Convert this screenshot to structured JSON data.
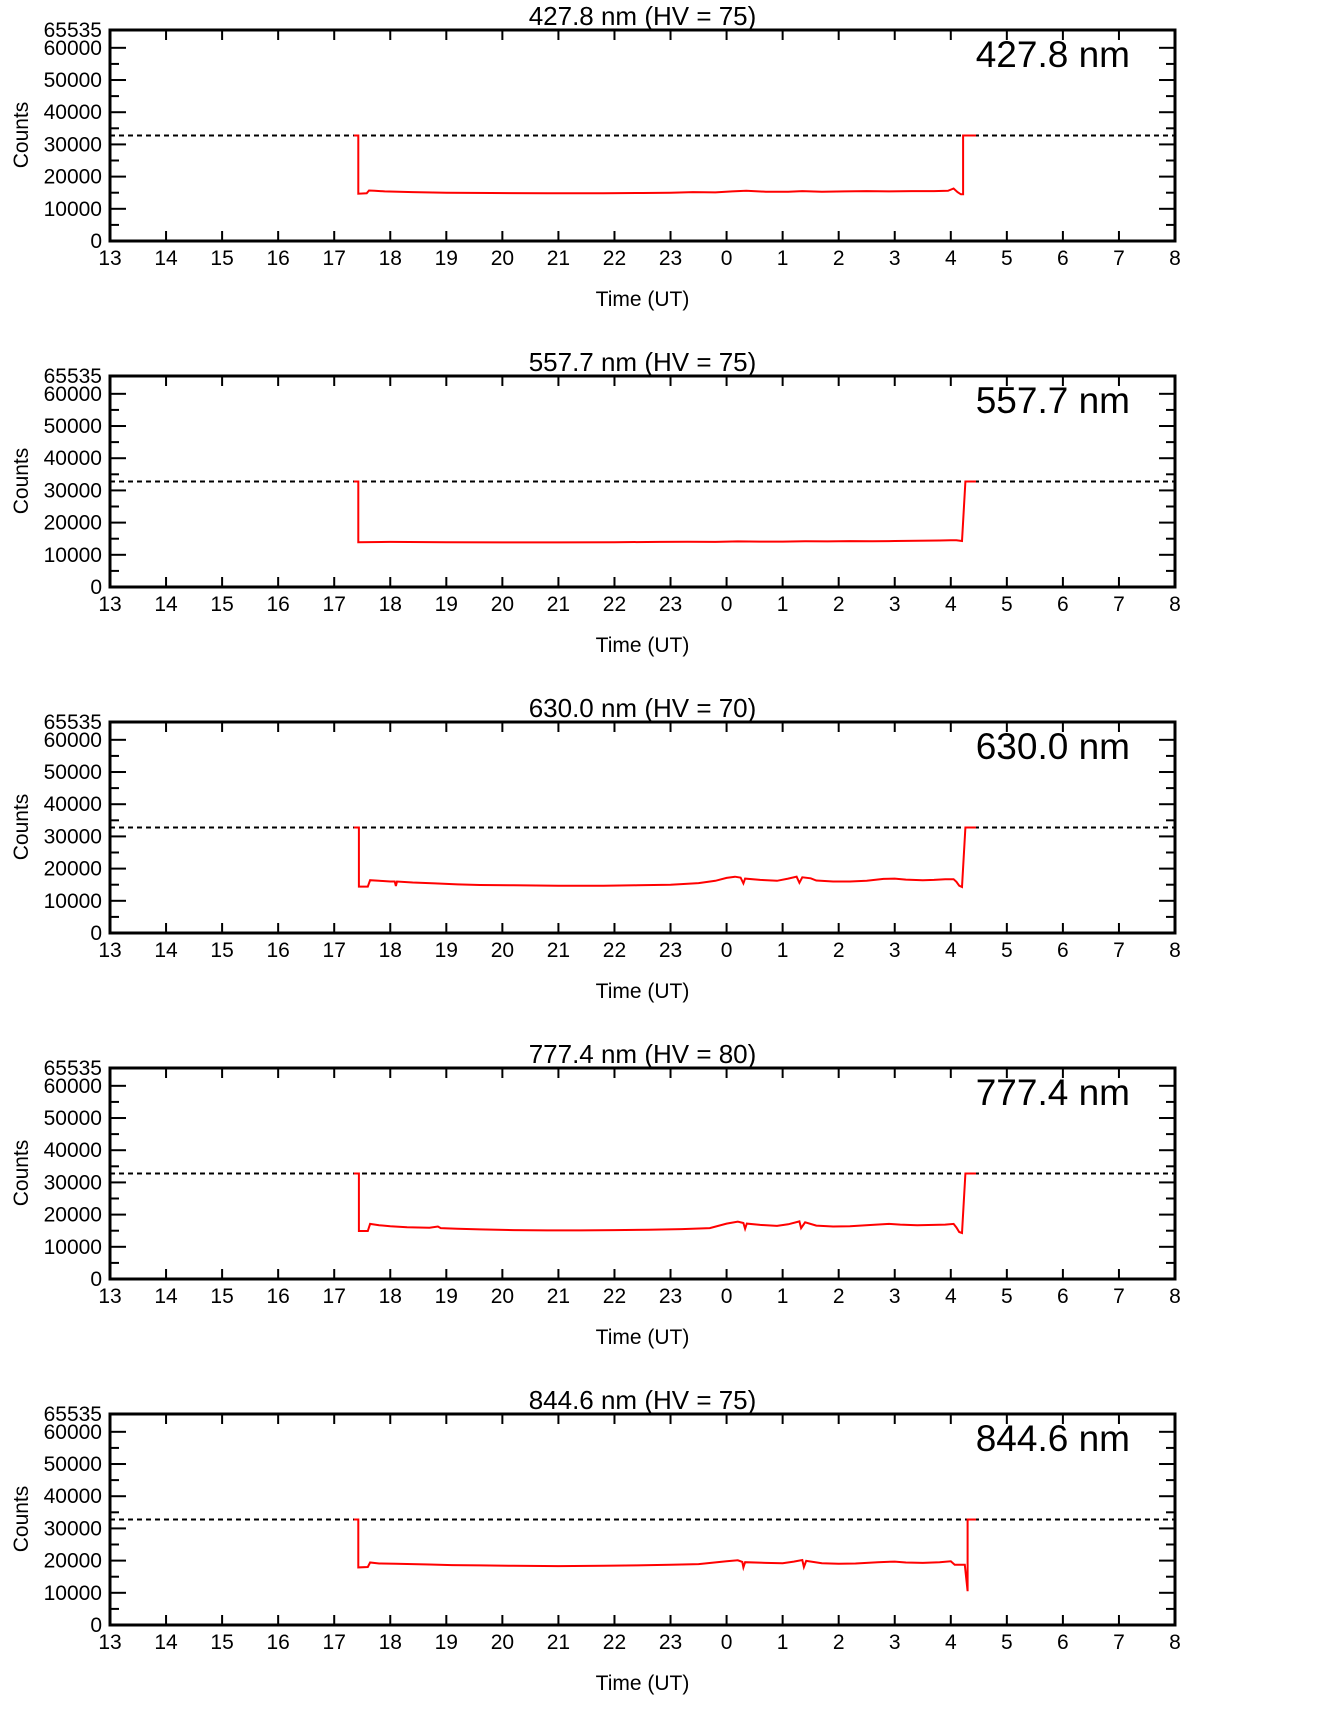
{
  "colors": {
    "trace": "#ff0000",
    "axis": "#000000",
    "background": "#ffffff",
    "threshold_line": "#000000"
  },
  "axis_defaults": {
    "xlabel": "Time (UT)",
    "ylabel": "Counts",
    "x_tick_labels": [
      "13",
      "14",
      "15",
      "16",
      "17",
      "18",
      "19",
      "20",
      "21",
      "22",
      "23",
      "0",
      "1",
      "2",
      "3",
      "4",
      "5",
      "6",
      "7",
      "8"
    ],
    "x_tick_hours": [
      13,
      14,
      15,
      16,
      17,
      18,
      19,
      20,
      21,
      22,
      23,
      24,
      25,
      26,
      27,
      28,
      29,
      30,
      31,
      32
    ],
    "y_tick_labels": [
      "0",
      "10000",
      "20000",
      "30000",
      "40000",
      "50000",
      "60000",
      "65535"
    ],
    "y_ticks": [
      0,
      10000,
      20000,
      30000,
      40000,
      50000,
      60000,
      65535
    ],
    "y_minor_ticks": [
      5000,
      15000,
      25000,
      35000,
      45000,
      55000
    ],
    "ylim": [
      0,
      65535
    ],
    "x_range_hours": [
      13,
      32
    ],
    "threshold_counts": 32768
  },
  "chart_data": [
    {
      "type": "line",
      "title": "427.8 nm (HV = 75)",
      "inset_label": "427.8 nm",
      "wavelength_nm": 427.8,
      "hv": 75,
      "xlabel": "Time (UT)",
      "ylabel": "Counts",
      "dashed_line_y": 32768,
      "series": [
        {
          "name": "counts",
          "color": "#ff0000",
          "points": [
            [
              17.35,
              32768
            ],
            [
              17.43,
              32768
            ],
            [
              17.43,
              14700
            ],
            [
              17.58,
              14800
            ],
            [
              17.62,
              15700
            ],
            [
              17.72,
              15600
            ],
            [
              17.9,
              15400
            ],
            [
              18.4,
              15200
            ],
            [
              19.0,
              15000
            ],
            [
              19.8,
              14900
            ],
            [
              20.8,
              14800
            ],
            [
              21.8,
              14800
            ],
            [
              22.5,
              14900
            ],
            [
              23.0,
              15000
            ],
            [
              23.4,
              15200
            ],
            [
              23.8,
              15100
            ],
            [
              24.1,
              15400
            ],
            [
              24.35,
              15600
            ],
            [
              24.7,
              15300
            ],
            [
              25.1,
              15300
            ],
            [
              25.35,
              15500
            ],
            [
              25.7,
              15300
            ],
            [
              26.1,
              15400
            ],
            [
              26.5,
              15500
            ],
            [
              26.9,
              15400
            ],
            [
              27.3,
              15500
            ],
            [
              27.7,
              15500
            ],
            [
              27.95,
              15600
            ],
            [
              28.05,
              16300
            ],
            [
              28.12,
              15200
            ],
            [
              28.18,
              14500
            ],
            [
              28.22,
              14500
            ],
            [
              28.22,
              32768
            ],
            [
              28.45,
              32768
            ]
          ]
        }
      ]
    },
    {
      "type": "line",
      "title": "557.7 nm (HV = 75)",
      "inset_label": "557.7 nm",
      "wavelength_nm": 557.7,
      "hv": 75,
      "xlabel": "Time (UT)",
      "ylabel": "Counts",
      "dashed_line_y": 32768,
      "series": [
        {
          "name": "counts",
          "color": "#ff0000",
          "points": [
            [
              17.35,
              32768
            ],
            [
              17.43,
              32768
            ],
            [
              17.43,
              13900
            ],
            [
              18.0,
              14000
            ],
            [
              19.0,
              13900
            ],
            [
              20.0,
              13850
            ],
            [
              21.0,
              13850
            ],
            [
              22.0,
              13900
            ],
            [
              22.8,
              14000
            ],
            [
              23.3,
              14050
            ],
            [
              23.8,
              14000
            ],
            [
              24.2,
              14150
            ],
            [
              24.6,
              14100
            ],
            [
              25.0,
              14100
            ],
            [
              25.4,
              14200
            ],
            [
              25.8,
              14150
            ],
            [
              26.2,
              14250
            ],
            [
              26.6,
              14200
            ],
            [
              27.0,
              14300
            ],
            [
              27.4,
              14350
            ],
            [
              27.8,
              14450
            ],
            [
              28.0,
              14500
            ],
            [
              28.1,
              14550
            ],
            [
              28.2,
              14300
            ],
            [
              28.26,
              32768
            ],
            [
              28.45,
              32768
            ]
          ]
        }
      ]
    },
    {
      "type": "line",
      "title": "630.0 nm (HV = 70)",
      "inset_label": "630.0 nm",
      "wavelength_nm": 630.0,
      "hv": 70,
      "xlabel": "Time (UT)",
      "ylabel": "Counts",
      "dashed_line_y": 32768,
      "series": [
        {
          "name": "counts",
          "color": "#ff0000",
          "points": [
            [
              17.35,
              32768
            ],
            [
              17.44,
              32768
            ],
            [
              17.44,
              14400
            ],
            [
              17.6,
              14400
            ],
            [
              17.64,
              16400
            ],
            [
              17.8,
              16200
            ],
            [
              18.0,
              16000
            ],
            [
              18.08,
              16000
            ],
            [
              18.1,
              14600
            ],
            [
              18.12,
              16000
            ],
            [
              18.4,
              15700
            ],
            [
              18.8,
              15400
            ],
            [
              19.2,
              15100
            ],
            [
              19.6,
              14900
            ],
            [
              20.2,
              14800
            ],
            [
              21.0,
              14700
            ],
            [
              21.8,
              14700
            ],
            [
              22.4,
              14800
            ],
            [
              23.0,
              15000
            ],
            [
              23.5,
              15500
            ],
            [
              23.8,
              16200
            ],
            [
              24.0,
              17100
            ],
            [
              24.15,
              17500
            ],
            [
              24.25,
              17200
            ],
            [
              24.3,
              15400
            ],
            [
              24.33,
              16900
            ],
            [
              24.6,
              16500
            ],
            [
              24.9,
              16200
            ],
            [
              25.1,
              16900
            ],
            [
              25.25,
              17500
            ],
            [
              25.3,
              15600
            ],
            [
              25.35,
              17300
            ],
            [
              25.5,
              17000
            ],
            [
              25.6,
              16300
            ],
            [
              25.9,
              16000
            ],
            [
              26.2,
              16000
            ],
            [
              26.5,
              16200
            ],
            [
              26.8,
              16800
            ],
            [
              27.0,
              16900
            ],
            [
              27.2,
              16600
            ],
            [
              27.5,
              16400
            ],
            [
              27.7,
              16500
            ],
            [
              27.9,
              16700
            ],
            [
              28.05,
              16700
            ],
            [
              28.1,
              15900
            ],
            [
              28.15,
              14700
            ],
            [
              28.2,
              14300
            ],
            [
              28.26,
              32768
            ],
            [
              28.45,
              32768
            ]
          ]
        }
      ]
    },
    {
      "type": "line",
      "title": "777.4 nm (HV = 80)",
      "inset_label": "777.4 nm",
      "wavelength_nm": 777.4,
      "hv": 80,
      "xlabel": "Time (UT)",
      "ylabel": "Counts",
      "dashed_line_y": 32768,
      "series": [
        {
          "name": "counts",
          "color": "#ff0000",
          "points": [
            [
              17.35,
              32768
            ],
            [
              17.44,
              32768
            ],
            [
              17.44,
              14900
            ],
            [
              17.6,
              14900
            ],
            [
              17.64,
              17100
            ],
            [
              17.8,
              16700
            ],
            [
              18.0,
              16400
            ],
            [
              18.3,
              16100
            ],
            [
              18.7,
              15900
            ],
            [
              18.85,
              16300
            ],
            [
              18.9,
              15800
            ],
            [
              19.2,
              15600
            ],
            [
              19.6,
              15400
            ],
            [
              20.2,
              15200
            ],
            [
              20.8,
              15100
            ],
            [
              21.4,
              15100
            ],
            [
              22.0,
              15200
            ],
            [
              22.6,
              15300
            ],
            [
              23.2,
              15500
            ],
            [
              23.7,
              15800
            ],
            [
              24.0,
              17200
            ],
            [
              24.2,
              17800
            ],
            [
              24.3,
              17400
            ],
            [
              24.33,
              15600
            ],
            [
              24.36,
              17200
            ],
            [
              24.6,
              16800
            ],
            [
              24.9,
              16500
            ],
            [
              25.1,
              17000
            ],
            [
              25.3,
              17900
            ],
            [
              25.33,
              15800
            ],
            [
              25.4,
              17600
            ],
            [
              25.6,
              16600
            ],
            [
              25.9,
              16300
            ],
            [
              26.2,
              16400
            ],
            [
              26.6,
              16800
            ],
            [
              26.9,
              17100
            ],
            [
              27.1,
              16900
            ],
            [
              27.4,
              16700
            ],
            [
              27.7,
              16800
            ],
            [
              27.9,
              16900
            ],
            [
              28.05,
              17100
            ],
            [
              28.1,
              16000
            ],
            [
              28.15,
              14600
            ],
            [
              28.2,
              14300
            ],
            [
              28.26,
              32768
            ],
            [
              28.45,
              32768
            ]
          ]
        }
      ]
    },
    {
      "type": "line",
      "title": "844.6 nm (HV = 75)",
      "inset_label": "844.6 nm",
      "wavelength_nm": 844.6,
      "hv": 75,
      "xlabel": "Time (UT)",
      "ylabel": "Counts",
      "dashed_line_y": 32768,
      "series": [
        {
          "name": "counts",
          "color": "#ff0000",
          "points": [
            [
              17.35,
              32768
            ],
            [
              17.43,
              32768
            ],
            [
              17.43,
              17900
            ],
            [
              17.6,
              18000
            ],
            [
              17.64,
              19400
            ],
            [
              17.8,
              19100
            ],
            [
              18.1,
              19000
            ],
            [
              18.4,
              18900
            ],
            [
              18.7,
              18800
            ],
            [
              19.1,
              18600
            ],
            [
              19.6,
              18500
            ],
            [
              20.2,
              18400
            ],
            [
              21.0,
              18300
            ],
            [
              21.8,
              18400
            ],
            [
              22.4,
              18500
            ],
            [
              23.0,
              18700
            ],
            [
              23.5,
              18900
            ],
            [
              24.0,
              19800
            ],
            [
              24.2,
              20100
            ],
            [
              24.28,
              19600
            ],
            [
              24.3,
              17900
            ],
            [
              24.33,
              19500
            ],
            [
              24.7,
              19300
            ],
            [
              25.0,
              19200
            ],
            [
              25.2,
              19700
            ],
            [
              25.35,
              20200
            ],
            [
              25.38,
              18000
            ],
            [
              25.42,
              19900
            ],
            [
              25.7,
              19200
            ],
            [
              26.0,
              19000
            ],
            [
              26.3,
              19100
            ],
            [
              26.7,
              19500
            ],
            [
              27.0,
              19700
            ],
            [
              27.2,
              19400
            ],
            [
              27.5,
              19300
            ],
            [
              27.8,
              19500
            ],
            [
              28.0,
              19800
            ],
            [
              28.07,
              18700
            ],
            [
              28.25,
              18700
            ],
            [
              28.3,
              10500
            ],
            [
              28.3,
              32768
            ],
            [
              28.45,
              32768
            ]
          ]
        }
      ]
    }
  ]
}
